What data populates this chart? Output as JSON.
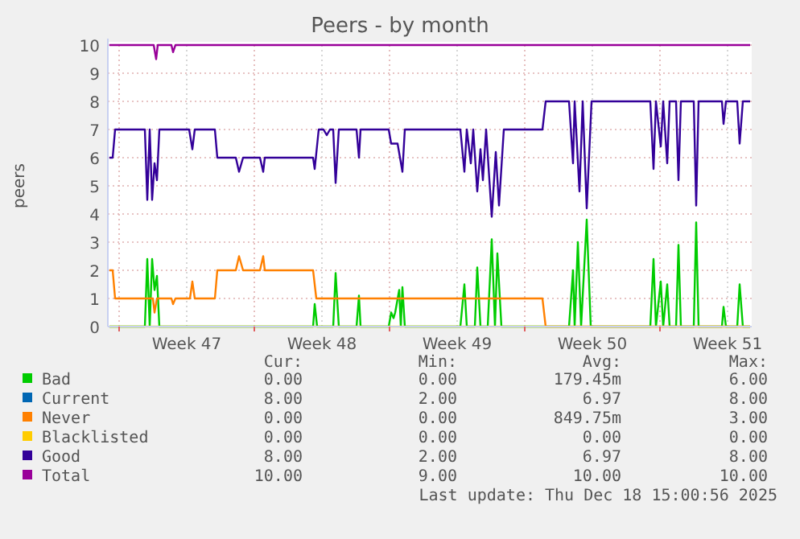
{
  "chart_data": {
    "type": "line",
    "title": "Peers - by month",
    "ylabel": "peers",
    "xlim": [
      "2025-11-15T10:00",
      "2025-12-18T18:00"
    ],
    "xticks": [
      {
        "value": "2025-11-16T00:00",
        "label": null
      },
      {
        "value": "2025-11-19T12:00",
        "label": "Week 47"
      },
      {
        "value": "2025-11-23T00:00",
        "label": null
      },
      {
        "value": "2025-11-26T12:00",
        "label": "Week 48"
      },
      {
        "value": "2025-11-30T00:00",
        "label": null
      },
      {
        "value": "2025-12-03T12:00",
        "label": "Week 49"
      },
      {
        "value": "2025-12-07T00:00",
        "label": null
      },
      {
        "value": "2025-12-10T12:00",
        "label": "Week 50"
      },
      {
        "value": "2025-12-14T00:00",
        "label": null
      },
      {
        "value": "2025-12-17T12:00",
        "label": "Week 51"
      }
    ],
    "ylim": [
      0,
      10
    ],
    "yticks": [
      0,
      1,
      2,
      3,
      4,
      5,
      6,
      7,
      8,
      9,
      10
    ],
    "grid": true,
    "legend": "bottom",
    "marker": "none",
    "line_style": "solid",
    "series": [
      {
        "name": "Bad",
        "color": "#00cc00",
        "x": [
          "2025-11-15T12:00",
          "2025-11-17T08:00",
          "2025-11-17T11:00",
          "2025-11-17T14:00",
          "2025-11-17T17:00",
          "2025-11-17T20:00",
          "2025-11-17T23:00",
          "2025-11-18T02:00",
          "2025-11-26T01:00",
          "2025-11-26T03:00",
          "2025-11-26T06:00",
          "2025-11-27T02:00",
          "2025-11-27T05:00",
          "2025-11-27T09:00",
          "2025-11-28T07:00",
          "2025-11-28T10:00",
          "2025-11-28T12:00",
          "2025-11-29T23:00",
          "2025-11-30T02:00",
          "2025-11-30T05:00",
          "2025-11-30T07:00",
          "2025-11-30T12:00",
          "2025-11-30T14:00",
          "2025-11-30T16:00",
          "2025-11-30T19:00",
          "2025-12-03T16:00",
          "2025-12-03T21:00",
          "2025-12-04T00:00",
          "2025-12-04T10:00",
          "2025-12-04T13:00",
          "2025-12-04T17:00",
          "2025-12-05T02:00",
          "2025-12-05T07:00",
          "2025-12-05T11:00",
          "2025-12-05T14:00",
          "2025-12-05T19:00",
          "2025-12-09T07:00",
          "2025-12-09T12:00",
          "2025-12-09T14:00",
          "2025-12-09T18:00",
          "2025-12-09T22:00",
          "2025-12-10T05:00",
          "2025-12-10T10:00",
          "2025-12-13T12:00",
          "2025-12-13T16:00",
          "2025-12-13T19:00",
          "2025-12-14T01:00",
          "2025-12-14T04:00",
          "2025-12-14T09:00",
          "2025-12-14T12:00",
          "2025-12-14T20:00",
          "2025-12-14T23:00",
          "2025-12-15T02:00",
          "2025-12-15T18:00",
          "2025-12-15T21:00",
          "2025-12-16T00:00",
          "2025-12-17T05:00",
          "2025-12-17T07:00",
          "2025-12-17T10:00",
          "2025-12-18T00:00",
          "2025-12-18T03:00",
          "2025-12-18T07:00",
          "2025-12-18T16:00"
        ],
        "values": [
          0,
          0,
          2.4,
          0,
          2.4,
          1.3,
          1.8,
          0,
          0,
          0.8,
          0,
          0,
          1.9,
          0,
          0,
          1.1,
          0,
          0,
          0.5,
          0.3,
          0.5,
          1.3,
          0,
          1.4,
          0,
          0,
          1.5,
          0,
          0,
          2.1,
          0,
          0,
          3.1,
          0,
          2.6,
          0,
          0,
          2,
          0,
          3,
          0,
          3.8,
          0,
          0,
          2.4,
          0,
          1.6,
          0,
          1.5,
          0,
          0,
          2.9,
          0,
          0,
          3.7,
          0,
          0,
          0.7,
          0,
          0,
          1.5,
          0,
          0
        ]
      },
      {
        "name": "Current",
        "color": "#0066b3"
      },
      {
        "name": "Never",
        "color": "#ff8000",
        "x": [
          "2025-11-15T12:00",
          "2025-11-15T16:00",
          "2025-11-15T19:00",
          "2025-11-17T18:00",
          "2025-11-17T20:00",
          "2025-11-17T23:00",
          "2025-11-18T17:00",
          "2025-11-18T19:00",
          "2025-11-18T22:00",
          "2025-11-19T16:00",
          "2025-11-19T19:00",
          "2025-11-19T22:00",
          "2025-11-20T23:00",
          "2025-11-21T02:00",
          "2025-11-22T01:00",
          "2025-11-22T05:00",
          "2025-11-22T10:00",
          "2025-11-23T07:00",
          "2025-11-23T11:00",
          "2025-11-23T13:00",
          "2025-11-26T01:00",
          "2025-11-26T05:00",
          "2025-12-07T22:00",
          "2025-12-08T02:00",
          "2025-12-18T16:00"
        ],
        "values": [
          2,
          2,
          1,
          1,
          0.5,
          1,
          1,
          0.8,
          1,
          1,
          1.6,
          1,
          1,
          2,
          2,
          2.5,
          2,
          2,
          2.5,
          2,
          2,
          1,
          1,
          0,
          0
        ]
      },
      {
        "name": "Blacklisted",
        "color": "#ffcc00",
        "x": [
          "2025-11-15T12:00",
          "2025-12-18T16:00"
        ],
        "values": [
          0,
          0
        ]
      },
      {
        "name": "Good",
        "color": "#330099",
        "x": [
          "2025-11-15T12:00",
          "2025-11-15T16:00",
          "2025-11-15T19:00",
          "2025-11-17T08:00",
          "2025-11-17T11:00",
          "2025-11-17T14:00",
          "2025-11-17T17:00",
          "2025-11-17T20:00",
          "2025-11-17T23:00",
          "2025-11-18T02:00",
          "2025-11-19T15:00",
          "2025-11-19T19:00",
          "2025-11-19T22:00",
          "2025-11-20T23:00",
          "2025-11-21T02:00",
          "2025-11-22T01:00",
          "2025-11-22T05:00",
          "2025-11-22T10:00",
          "2025-11-23T07:00",
          "2025-11-23T11:00",
          "2025-11-23T13:00",
          "2025-11-26T01:00",
          "2025-11-26T03:00",
          "2025-11-26T08:00",
          "2025-11-26T14:00",
          "2025-11-26T18:00",
          "2025-11-26T22:00",
          "2025-11-27T02:00",
          "2025-11-27T05:00",
          "2025-11-27T09:00",
          "2025-11-28T07:00",
          "2025-11-28T10:00",
          "2025-11-28T12:00",
          "2025-11-29T23:00",
          "2025-11-30T02:00",
          "2025-11-30T10:00",
          "2025-11-30T16:00",
          "2025-11-30T19:00",
          "2025-12-03T10:00",
          "2025-12-03T16:00",
          "2025-12-03T21:00",
          "2025-12-04T00:00",
          "2025-12-04T05:00",
          "2025-12-04T08:00",
          "2025-12-04T13:00",
          "2025-12-04T17:00",
          "2025-12-04T20:00",
          "2025-12-05T00:00",
          "2025-12-05T07:00",
          "2025-12-05T12:00",
          "2025-12-05T16:00",
          "2025-12-05T22:00",
          "2025-12-07T22:00",
          "2025-12-08T02:00",
          "2025-12-09T07:00",
          "2025-12-09T12:00",
          "2025-12-09T14:00",
          "2025-12-09T20:00",
          "2025-12-10T00:00",
          "2025-12-10T05:00",
          "2025-12-10T11:00",
          "2025-12-13T12:00",
          "2025-12-13T16:00",
          "2025-12-13T19:00",
          "2025-12-14T01:00",
          "2025-12-14T04:00",
          "2025-12-14T09:00",
          "2025-12-14T12:00",
          "2025-12-14T20:00",
          "2025-12-14T23:00",
          "2025-12-15T02:00",
          "2025-12-15T18:00",
          "2025-12-15T21:00",
          "2025-12-16T00:00",
          "2025-12-17T05:00",
          "2025-12-17T07:00",
          "2025-12-17T10:00",
          "2025-12-18T00:00",
          "2025-12-18T03:00",
          "2025-12-18T07:00",
          "2025-12-18T16:00"
        ],
        "values": [
          6,
          6,
          7,
          7,
          4.5,
          7,
          4.5,
          5.8,
          5.2,
          7,
          7,
          6.3,
          7,
          7,
          6,
          6,
          5.5,
          6,
          6,
          5.5,
          6,
          6,
          5.6,
          7,
          7,
          6.8,
          7,
          7,
          5.1,
          7,
          7,
          6,
          7,
          7,
          6.5,
          6.5,
          5.5,
          7,
          7,
          7,
          5.5,
          7,
          5.8,
          7,
          4.8,
          6.3,
          5.2,
          7,
          3.9,
          6.2,
          4.3,
          7,
          7,
          8,
          8,
          5.8,
          8,
          4.8,
          8,
          4.2,
          8,
          8,
          5.6,
          8,
          6.4,
          8,
          5.8,
          8,
          8,
          5.2,
          8,
          8,
          4.3,
          8,
          8,
          7.2,
          8,
          8,
          6.5,
          8,
          8
        ]
      },
      {
        "name": "Total",
        "color": "#990099",
        "x": [
          "2025-11-15T12:00",
          "2025-11-17T19:00",
          "2025-11-17T22:00",
          "2025-11-18T00:00",
          "2025-11-18T17:00",
          "2025-11-18T19:00",
          "2025-11-18T22:00",
          "2025-12-18T16:00"
        ],
        "values": [
          10,
          10,
          9.5,
          10,
          10,
          9.75,
          10,
          10
        ]
      }
    ],
    "annotations": [
      "Cur:",
      "Min:",
      "Avg:",
      "Max:",
      "0.00",
      "0.00",
      "179.45m",
      "6.00",
      "8.00",
      "2.00",
      "6.97",
      "8.00",
      "0.00",
      "0.00",
      "849.75m",
      "3.00",
      "0.00",
      "0.00",
      "0.00",
      "0.00",
      "8.00",
      "2.00",
      "6.97",
      "8.00",
      "10.00",
      "9.00",
      "10.00",
      "10.00",
      "Last update: Thu Dec 18 15:00:56 2025"
    ]
  }
}
